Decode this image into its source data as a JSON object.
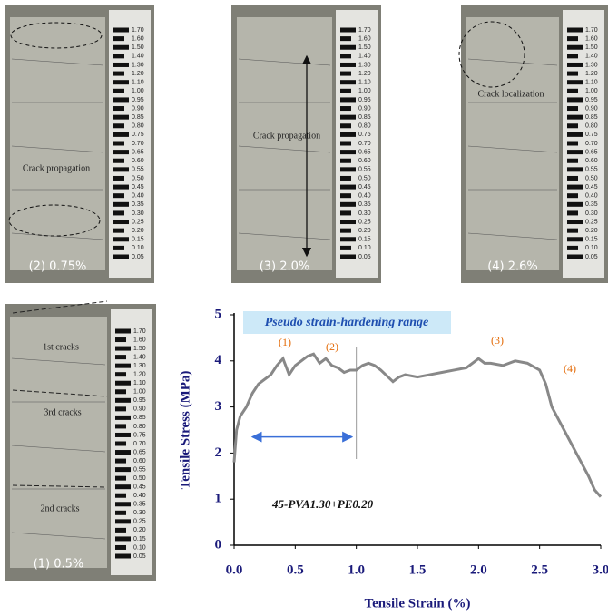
{
  "photos": [
    {
      "caption": "(2) 0.75%",
      "annotations": [
        "Crack propagation"
      ]
    },
    {
      "caption": "(3) 2.0%",
      "annotations": [
        "Crack propagation"
      ]
    },
    {
      "caption": "(4) 2.6%",
      "annotations": [
        "Crack localization"
      ]
    },
    {
      "caption": "(1) 0.5%",
      "annotations": [
        "1st cracks",
        "3rd cracks",
        "2nd cracks"
      ]
    }
  ],
  "ruler_labels": [
    "1.70",
    "1.60",
    "1.50",
    "1.40",
    "1.30",
    "1.20",
    "1.10",
    "1.00",
    "0.95",
    "0.90",
    "0.85",
    "0.80",
    "0.75",
    "0.70",
    "0.65",
    "0.60",
    "0.55",
    "0.50",
    "0.45",
    "0.40",
    "0.35",
    "0.30",
    "0.25",
    "0.20",
    "0.15",
    "0.10",
    "0.05"
  ],
  "chart_data": {
    "type": "line",
    "x_label": "Tensile Strain (%)",
    "y_label": "Tensile Stress (MPa)",
    "x": [
      0,
      0.02,
      0.05,
      0.1,
      0.15,
      0.2,
      0.3,
      0.35,
      0.4,
      0.45,
      0.5,
      0.55,
      0.6,
      0.65,
      0.7,
      0.75,
      0.8,
      0.85,
      0.9,
      0.95,
      1.0,
      1.05,
      1.1,
      1.15,
      1.2,
      1.3,
      1.35,
      1.4,
      1.5,
      1.6,
      1.7,
      1.8,
      1.9,
      2.0,
      2.05,
      2.1,
      2.2,
      2.3,
      2.4,
      2.5,
      2.55,
      2.6,
      2.7,
      2.8,
      2.9,
      2.95,
      3.0
    ],
    "series": [
      {
        "name": "45-PVA1.30+PE0.20",
        "color": "#888888",
        "values": [
          1.8,
          2.5,
          2.8,
          3.0,
          3.3,
          3.5,
          3.7,
          3.9,
          4.05,
          3.7,
          3.9,
          4.0,
          4.1,
          4.15,
          3.95,
          4.05,
          3.9,
          3.85,
          3.75,
          3.8,
          3.8,
          3.9,
          3.95,
          3.9,
          3.8,
          3.55,
          3.65,
          3.7,
          3.65,
          3.7,
          3.75,
          3.8,
          3.85,
          4.05,
          3.95,
          3.95,
          3.9,
          4.0,
          3.95,
          3.8,
          3.5,
          3.0,
          2.5,
          2.0,
          1.5,
          1.2,
          1.05
        ]
      }
    ],
    "xlim": [
      0,
      3
    ],
    "ylim": [
      0,
      5
    ],
    "xticks": [
      {
        "value": 0,
        "label": "0.0"
      },
      0.5,
      {
        "value": 1,
        "label": "1.0"
      },
      1.5,
      {
        "value": 2,
        "label": "2.0"
      },
      2.5,
      {
        "value": 3,
        "label": "3.0"
      }
    ],
    "yticks": [
      0,
      1,
      2,
      3,
      4,
      5
    ],
    "range_label": "Pseudo strain-hardening range",
    "range": {
      "x": [
        0.15,
        1.0
      ],
      "y": 2.35
    },
    "annotations": [
      "(1)",
      "(2)",
      "(3)",
      "(4)"
    ]
  }
}
